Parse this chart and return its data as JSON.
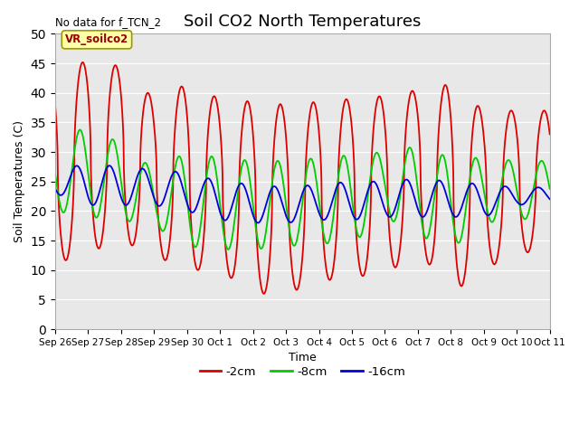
{
  "title": "Soil CO2 North Temperatures",
  "xlabel": "Time",
  "ylabel": "Soil Temperatures (C)",
  "ylim": [
    0,
    50
  ],
  "annotation": "No data for f_TCN_2",
  "legend_label": "VR_soilco2",
  "legend_entries": [
    "-2cm",
    "-8cm",
    "-16cm"
  ],
  "legend_colors": [
    "#dd0000",
    "#00cc00",
    "#0000dd"
  ],
  "bg_color": "#e8e8e8",
  "title_fontsize": 13,
  "tick_labels": [
    "Sep 26",
    "Sep 27",
    "Sep 28",
    "Sep 29",
    "Sep 30",
    "Oct 1",
    "Oct 2",
    "Oct 3",
    "Oct 4",
    "Oct 5",
    "Oct 6",
    "Oct 7",
    "Oct 8",
    "Oct 9",
    "Oct 10",
    "Oct 11"
  ],
  "red_peaks": [
    43.5,
    45.5,
    44.5,
    39.0,
    41.5,
    39.0,
    38.5,
    38.0,
    38.5,
    39.0,
    39.5,
    40.5,
    41.5,
    37.0,
    37.0,
    37.0
  ],
  "red_troughs": [
    11.0,
    13.0,
    15.0,
    12.5,
    10.0,
    10.0,
    6.0,
    6.0,
    8.0,
    9.0,
    9.0,
    13.5,
    6.0,
    10.0,
    13.0,
    13.0
  ],
  "green_peaks": [
    33.0,
    34.0,
    31.5,
    27.0,
    30.0,
    29.0,
    28.5,
    28.5,
    29.0,
    29.5,
    30.0,
    31.0,
    29.0,
    29.0,
    28.5,
    28.5
  ],
  "green_troughs": [
    20.0,
    19.0,
    18.5,
    17.5,
    14.0,
    13.5,
    13.5,
    14.0,
    14.5,
    14.5,
    19.0,
    16.0,
    13.5,
    18.0,
    18.5,
    19.0
  ],
  "blue_peaks": [
    27.0,
    28.0,
    27.5,
    27.0,
    26.5,
    25.0,
    24.5,
    24.0,
    24.5,
    25.0,
    25.0,
    25.5,
    25.0,
    24.5,
    24.0,
    24.0
  ],
  "blue_troughs": [
    23.0,
    21.0,
    21.0,
    21.0,
    20.0,
    18.5,
    18.0,
    18.0,
    18.5,
    18.5,
    19.0,
    19.0,
    19.0,
    19.0,
    21.0,
    21.5
  ],
  "red_phase": 0.0,
  "green_phase": 0.08,
  "blue_phase": 0.18
}
